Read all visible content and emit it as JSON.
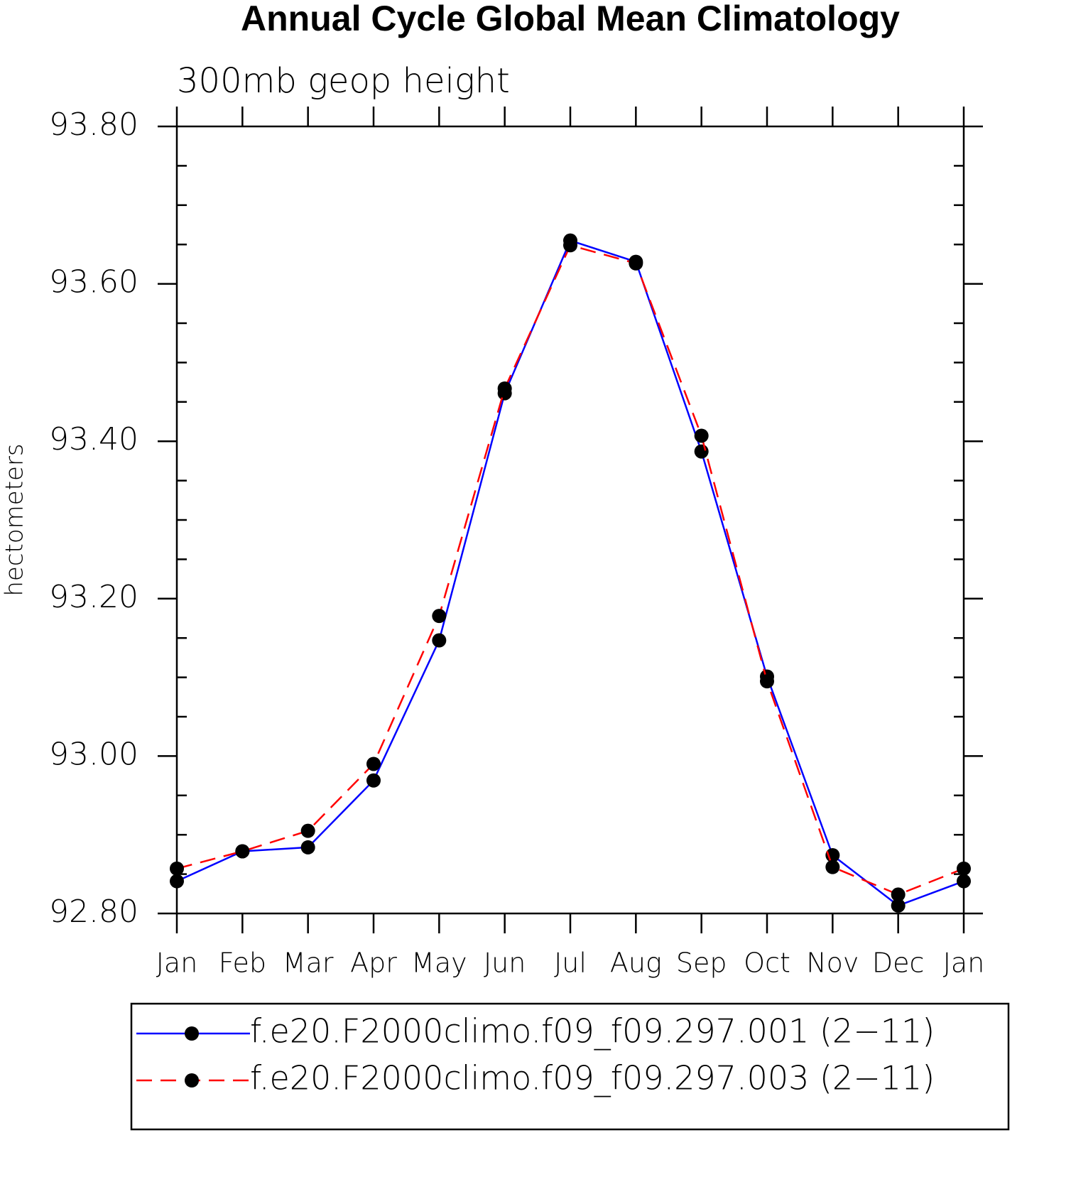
{
  "chart_data": {
    "type": "line",
    "title": "Annual Cycle Global Mean Climatology",
    "subtitle": "300mb geop height",
    "y_label": "hectometers",
    "categories": [
      "Jan",
      "Feb",
      "Mar",
      "Apr",
      "May",
      "Jun",
      "Jul",
      "Aug",
      "Sep",
      "Oct",
      "Nov",
      "Dec",
      "Jan"
    ],
    "series": [
      {
        "name": "f.e20.F2000climo.f09_f09.297.001 (2−11)",
        "color": "#0000ff",
        "line_style": "solid",
        "marker_color": "#000000",
        "values": [
          92.841,
          92.879,
          92.884,
          92.969,
          93.147,
          93.461,
          93.655,
          93.628,
          93.387,
          93.101,
          92.874,
          92.81,
          92.841
        ]
      },
      {
        "name": "f.e20.F2000climo.f09_f09.297.003 (2−11)",
        "color": "#ff0000",
        "line_style": "dashed",
        "marker_color": "#000000",
        "values": [
          92.857,
          92.879,
          92.905,
          92.99,
          93.178,
          93.467,
          93.649,
          93.626,
          93.407,
          93.095,
          92.859,
          92.824,
          92.857
        ]
      }
    ],
    "ylim": [
      92.8,
      93.8
    ],
    "yticks": [
      {
        "value": 92.8,
        "label": "92.80"
      },
      {
        "value": 93.0,
        "label": "93.00"
      },
      {
        "value": 93.2,
        "label": "93.20"
      },
      {
        "value": 93.4,
        "label": "93.40"
      },
      {
        "value": 93.6,
        "label": "93.60"
      },
      {
        "value": 93.8,
        "label": "93.80"
      }
    ],
    "legend": "bottom"
  }
}
